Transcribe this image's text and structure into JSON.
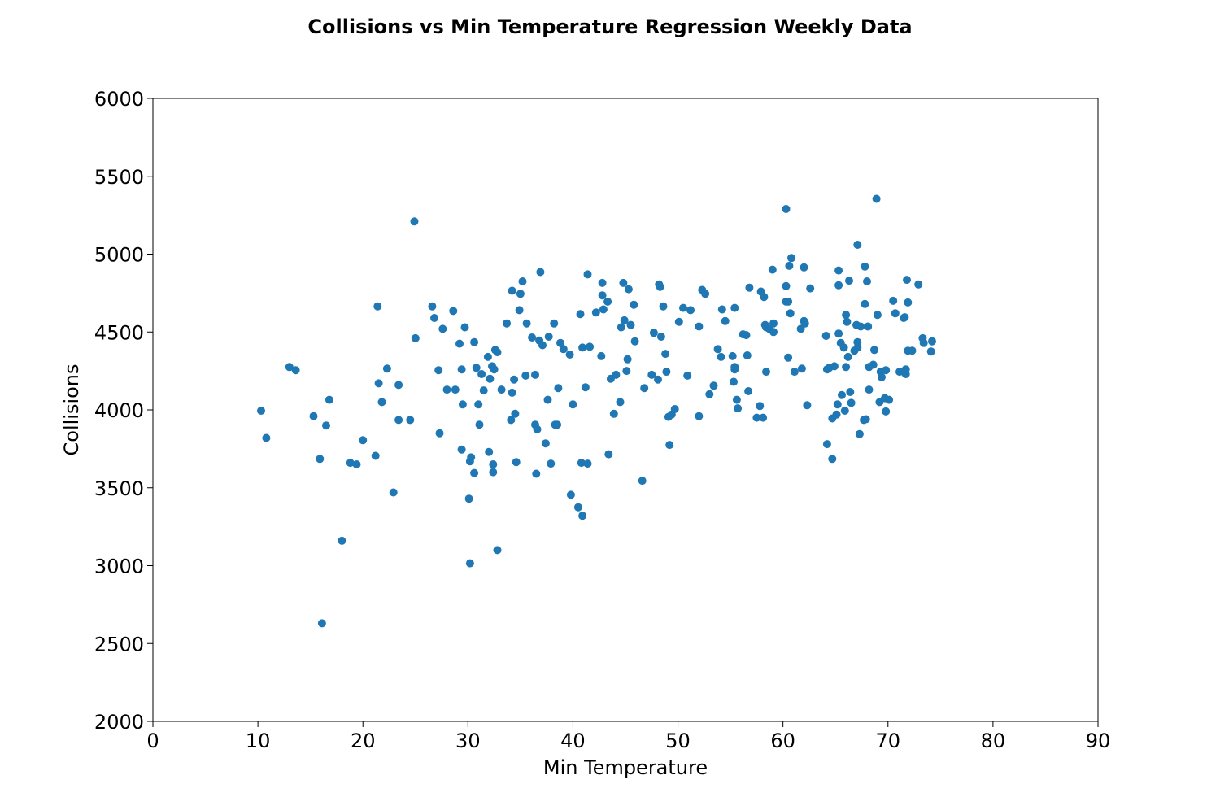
{
  "chart_data": {
    "type": "scatter",
    "title": "Collisions vs Min Temperature Regression Weekly Data",
    "xlabel": "Min Temperature",
    "ylabel": "Collisions",
    "xlim": [
      0,
      90
    ],
    "ylim": [
      2000,
      6000
    ],
    "xticks": [
      0,
      10,
      20,
      30,
      40,
      50,
      60,
      70,
      80,
      90
    ],
    "yticks": [
      2000,
      2500,
      3000,
      3500,
      4000,
      4500,
      5000,
      5500,
      6000
    ],
    "grid": false,
    "marker_color": "#1f77b4",
    "points": [
      [
        10.3,
        3995
      ],
      [
        10.8,
        3820
      ],
      [
        13.0,
        4275
      ],
      [
        13.6,
        4255
      ],
      [
        15.3,
        3960
      ],
      [
        15.9,
        3685
      ],
      [
        16.5,
        3900
      ],
      [
        16.8,
        4065
      ],
      [
        16.1,
        2630
      ],
      [
        18.0,
        3160
      ],
      [
        18.8,
        3660
      ],
      [
        19.4,
        3650
      ],
      [
        20.0,
        3805
      ],
      [
        21.2,
        3705
      ],
      [
        21.4,
        4665
      ],
      [
        21.5,
        4170
      ],
      [
        21.8,
        4050
      ],
      [
        22.3,
        4265
      ],
      [
        22.9,
        3470
      ],
      [
        23.4,
        4160
      ],
      [
        23.4,
        3935
      ],
      [
        24.5,
        3935
      ],
      [
        24.9,
        5210
      ],
      [
        25.0,
        4460
      ],
      [
        26.6,
        4665
      ],
      [
        26.8,
        4590
      ],
      [
        27.2,
        4255
      ],
      [
        27.3,
        3850
      ],
      [
        27.6,
        4520
      ],
      [
        28.0,
        4130
      ],
      [
        28.6,
        4635
      ],
      [
        28.8,
        4130
      ],
      [
        29.2,
        4425
      ],
      [
        29.4,
        3745
      ],
      [
        29.5,
        4035
      ],
      [
        29.4,
        4260
      ],
      [
        29.7,
        4530
      ],
      [
        30.1,
        3430
      ],
      [
        30.2,
        3015
      ],
      [
        30.2,
        3670
      ],
      [
        30.3,
        3695
      ],
      [
        30.6,
        3595
      ],
      [
        30.6,
        4435
      ],
      [
        30.8,
        4270
      ],
      [
        31.0,
        4035
      ],
      [
        31.1,
        3905
      ],
      [
        31.3,
        4230
      ],
      [
        31.5,
        4125
      ],
      [
        31.9,
        4340
      ],
      [
        32.0,
        3730
      ],
      [
        32.1,
        4200
      ],
      [
        32.3,
        4280
      ],
      [
        32.4,
        3650
      ],
      [
        32.4,
        3600
      ],
      [
        32.5,
        4260
      ],
      [
        32.6,
        4385
      ],
      [
        32.8,
        4370
      ],
      [
        32.8,
        3100
      ],
      [
        33.2,
        4130
      ],
      [
        33.7,
        4555
      ],
      [
        34.1,
        3935
      ],
      [
        34.2,
        4110
      ],
      [
        34.2,
        4765
      ],
      [
        34.4,
        4195
      ],
      [
        34.5,
        3975
      ],
      [
        34.6,
        3665
      ],
      [
        34.9,
        4640
      ],
      [
        35.0,
        4745
      ],
      [
        35.2,
        4825
      ],
      [
        35.5,
        4220
      ],
      [
        35.6,
        4555
      ],
      [
        36.1,
        4465
      ],
      [
        36.4,
        3905
      ],
      [
        36.4,
        4225
      ],
      [
        36.5,
        3590
      ],
      [
        36.6,
        3875
      ],
      [
        36.8,
        4445
      ],
      [
        36.9,
        4885
      ],
      [
        37.1,
        4415
      ],
      [
        37.4,
        3785
      ],
      [
        37.6,
        4065
      ],
      [
        37.7,
        4470
      ],
      [
        37.9,
        3655
      ],
      [
        38.2,
        4555
      ],
      [
        38.3,
        3905
      ],
      [
        38.5,
        3905
      ],
      [
        38.6,
        4140
      ],
      [
        38.8,
        4430
      ],
      [
        39.1,
        4390
      ],
      [
        39.7,
        4355
      ],
      [
        39.8,
        3455
      ],
      [
        40.0,
        4035
      ],
      [
        40.5,
        3375
      ],
      [
        40.7,
        4615
      ],
      [
        40.8,
        3660
      ],
      [
        40.9,
        4400
      ],
      [
        40.9,
        3320
      ],
      [
        41.2,
        4145
      ],
      [
        41.4,
        3655
      ],
      [
        41.4,
        4870
      ],
      [
        41.6,
        4405
      ],
      [
        42.2,
        4625
      ],
      [
        42.7,
        4345
      ],
      [
        42.8,
        4815
      ],
      [
        42.9,
        4645
      ],
      [
        42.8,
        4735
      ],
      [
        43.3,
        4695
      ],
      [
        43.4,
        3715
      ],
      [
        43.6,
        4200
      ],
      [
        43.9,
        3975
      ],
      [
        44.1,
        4225
      ],
      [
        44.5,
        4050
      ],
      [
        44.6,
        4530
      ],
      [
        44.8,
        4815
      ],
      [
        44.9,
        4575
      ],
      [
        45.1,
        4250
      ],
      [
        45.2,
        4325
      ],
      [
        45.3,
        4775
      ],
      [
        45.5,
        4545
      ],
      [
        45.9,
        4440
      ],
      [
        45.8,
        4675
      ],
      [
        46.6,
        3545
      ],
      [
        46.8,
        4140
      ],
      [
        47.5,
        4225
      ],
      [
        47.7,
        4495
      ],
      [
        48.1,
        4195
      ],
      [
        48.2,
        4805
      ],
      [
        48.3,
        4790
      ],
      [
        48.4,
        4470
      ],
      [
        48.6,
        4665
      ],
      [
        48.8,
        4360
      ],
      [
        48.9,
        4245
      ],
      [
        49.1,
        3955
      ],
      [
        49.2,
        3775
      ],
      [
        49.4,
        3970
      ],
      [
        49.7,
        4005
      ],
      [
        50.1,
        4565
      ],
      [
        50.5,
        4655
      ],
      [
        50.9,
        4220
      ],
      [
        51.2,
        4640
      ],
      [
        52.0,
        4535
      ],
      [
        52.0,
        3960
      ],
      [
        52.3,
        4770
      ],
      [
        52.6,
        4745
      ],
      [
        53.0,
        4100
      ],
      [
        53.4,
        4155
      ],
      [
        53.8,
        4390
      ],
      [
        54.1,
        4340
      ],
      [
        54.2,
        4645
      ],
      [
        54.5,
        4570
      ],
      [
        55.2,
        4345
      ],
      [
        55.3,
        4180
      ],
      [
        55.4,
        4655
      ],
      [
        55.4,
        4275
      ],
      [
        55.4,
        4260
      ],
      [
        55.6,
        4065
      ],
      [
        55.7,
        4010
      ],
      [
        56.2,
        4485
      ],
      [
        56.5,
        4480
      ],
      [
        56.6,
        4350
      ],
      [
        56.7,
        4120
      ],
      [
        56.8,
        4785
      ],
      [
        57.5,
        3950
      ],
      [
        57.8,
        4025
      ],
      [
        57.9,
        4760
      ],
      [
        58.1,
        3950
      ],
      [
        58.2,
        4725
      ],
      [
        58.3,
        4545
      ],
      [
        58.4,
        4530
      ],
      [
        58.4,
        4245
      ],
      [
        58.7,
        4520
      ],
      [
        59.0,
        4900
      ],
      [
        59.1,
        4500
      ],
      [
        59.1,
        4555
      ],
      [
        60.3,
        5290
      ],
      [
        60.3,
        4695
      ],
      [
        60.3,
        4795
      ],
      [
        60.5,
        4695
      ],
      [
        60.5,
        4335
      ],
      [
        60.6,
        4925
      ],
      [
        60.7,
        4620
      ],
      [
        60.8,
        4975
      ],
      [
        61.1,
        4245
      ],
      [
        61.7,
        4520
      ],
      [
        61.8,
        4265
      ],
      [
        62.0,
        4915
      ],
      [
        62.0,
        4570
      ],
      [
        62.1,
        4555
      ],
      [
        62.3,
        4030
      ],
      [
        62.6,
        4780
      ],
      [
        64.1,
        4475
      ],
      [
        64.2,
        3780
      ],
      [
        64.2,
        4260
      ],
      [
        64.4,
        4270
      ],
      [
        64.7,
        3945
      ],
      [
        64.7,
        3685
      ],
      [
        64.9,
        4280
      ],
      [
        65.1,
        3970
      ],
      [
        65.2,
        4035
      ],
      [
        65.3,
        4895
      ],
      [
        65.3,
        4490
      ],
      [
        65.3,
        4800
      ],
      [
        65.5,
        4430
      ],
      [
        65.6,
        4095
      ],
      [
        65.8,
        4400
      ],
      [
        65.9,
        3995
      ],
      [
        66.0,
        4275
      ],
      [
        66.0,
        4610
      ],
      [
        66.1,
        4565
      ],
      [
        66.2,
        4340
      ],
      [
        66.3,
        4830
      ],
      [
        66.4,
        4115
      ],
      [
        66.5,
        4045
      ],
      [
        66.8,
        4380
      ],
      [
        67.0,
        4545
      ],
      [
        67.1,
        4400
      ],
      [
        67.1,
        4435
      ],
      [
        67.1,
        5060
      ],
      [
        67.3,
        3845
      ],
      [
        67.4,
        4535
      ],
      [
        67.7,
        3935
      ],
      [
        67.8,
        4680
      ],
      [
        67.8,
        4920
      ],
      [
        67.9,
        3940
      ],
      [
        68.0,
        4825
      ],
      [
        68.1,
        4535
      ],
      [
        68.2,
        4275
      ],
      [
        68.2,
        4130
      ],
      [
        68.6,
        4290
      ],
      [
        68.7,
        4385
      ],
      [
        68.9,
        5355
      ],
      [
        69.0,
        4610
      ],
      [
        69.2,
        4050
      ],
      [
        69.3,
        4245
      ],
      [
        69.4,
        4210
      ],
      [
        69.7,
        4075
      ],
      [
        69.8,
        3990
      ],
      [
        69.8,
        4255
      ],
      [
        70.1,
        4065
      ],
      [
        70.5,
        4700
      ],
      [
        70.7,
        4620
      ],
      [
        71.1,
        4245
      ],
      [
        71.5,
        4590
      ],
      [
        71.6,
        4595
      ],
      [
        71.6,
        4240
      ],
      [
        71.7,
        4230
      ],
      [
        71.7,
        4260
      ],
      [
        71.8,
        4835
      ],
      [
        71.9,
        4690
      ],
      [
        71.9,
        4380
      ],
      [
        72.3,
        4380
      ],
      [
        72.9,
        4805
      ],
      [
        73.3,
        4460
      ],
      [
        73.4,
        4430
      ],
      [
        74.1,
        4375
      ],
      [
        74.2,
        4440
      ]
    ]
  }
}
